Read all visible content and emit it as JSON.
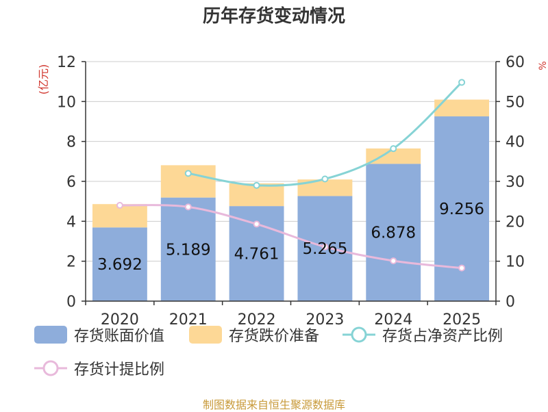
{
  "chart_data": {
    "type": "bar",
    "title": "历年存货变动情况",
    "ylabel_left": "(亿元)",
    "ylabel_right": "%",
    "categories": [
      "2020",
      "2021",
      "2022",
      "2023",
      "2024",
      "2025"
    ],
    "ylim_left": [
      0,
      12
    ],
    "yticks_left": [
      0,
      2,
      4,
      6,
      8,
      10,
      12
    ],
    "ylim_right": [
      0,
      60
    ],
    "yticks_right": [
      0,
      10,
      20,
      30,
      40,
      50,
      60
    ],
    "grid": true,
    "legend_position": "bottom",
    "series": [
      {
        "name": "存货账面价值",
        "kind": "bar",
        "axis": "left",
        "color": "#8eaddb",
        "values": [
          3.692,
          5.189,
          4.761,
          5.265,
          6.878,
          9.256
        ],
        "labels": [
          "3.692",
          "5.189",
          "4.761",
          "5.265",
          "6.878",
          "9.256"
        ]
      },
      {
        "name": "存货跌价准备",
        "kind": "bar",
        "axis": "left",
        "color": "#fdd896",
        "values": [
          1.17,
          1.62,
          1.14,
          0.83,
          0.77,
          0.84
        ]
      },
      {
        "name": "存货占净资产比例",
        "kind": "line",
        "axis": "right",
        "color": "#86d3d5",
        "values": [
          null,
          32.0,
          29.0,
          30.6,
          38.2,
          54.8
        ]
      },
      {
        "name": "存货计提比例",
        "kind": "line",
        "axis": "right",
        "color": "#e8b9db",
        "values": [
          24.0,
          23.6,
          19.3,
          13.6,
          10.1,
          8.3
        ]
      }
    ]
  },
  "footer": {
    "source": "制图数据来自恒生聚源数据库"
  }
}
